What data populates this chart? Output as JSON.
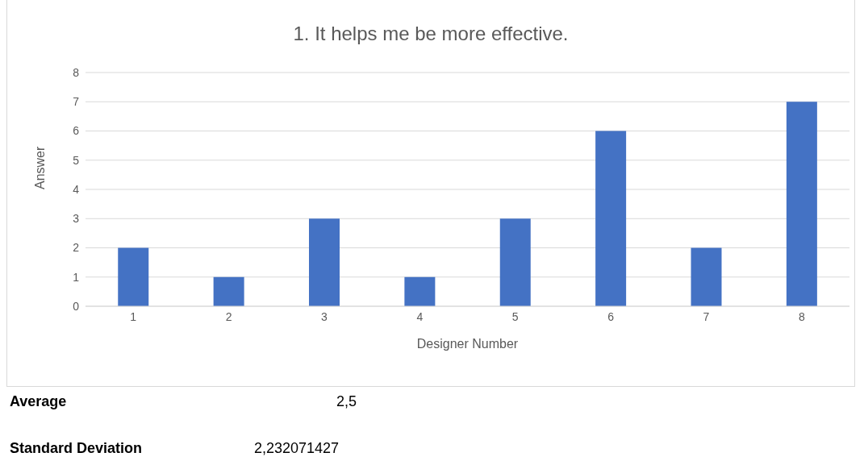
{
  "chart_data": {
    "type": "bar",
    "title": "1. It helps me be more effective.",
    "xlabel": "Designer Number",
    "ylabel": "Answer",
    "categories": [
      "1",
      "2",
      "3",
      "4",
      "5",
      "6",
      "7",
      "8"
    ],
    "values": [
      2,
      1,
      3,
      1,
      3,
      6,
      2,
      7
    ],
    "color": "#4472c4",
    "ylim": [
      0,
      8
    ],
    "yticks": [
      0,
      1,
      2,
      3,
      4,
      5,
      6,
      7,
      8
    ],
    "grid": "y",
    "legend": false,
    "annotations": [
      "Average",
      "2,5",
      "Standard Deviation",
      "2,232071427"
    ]
  }
}
